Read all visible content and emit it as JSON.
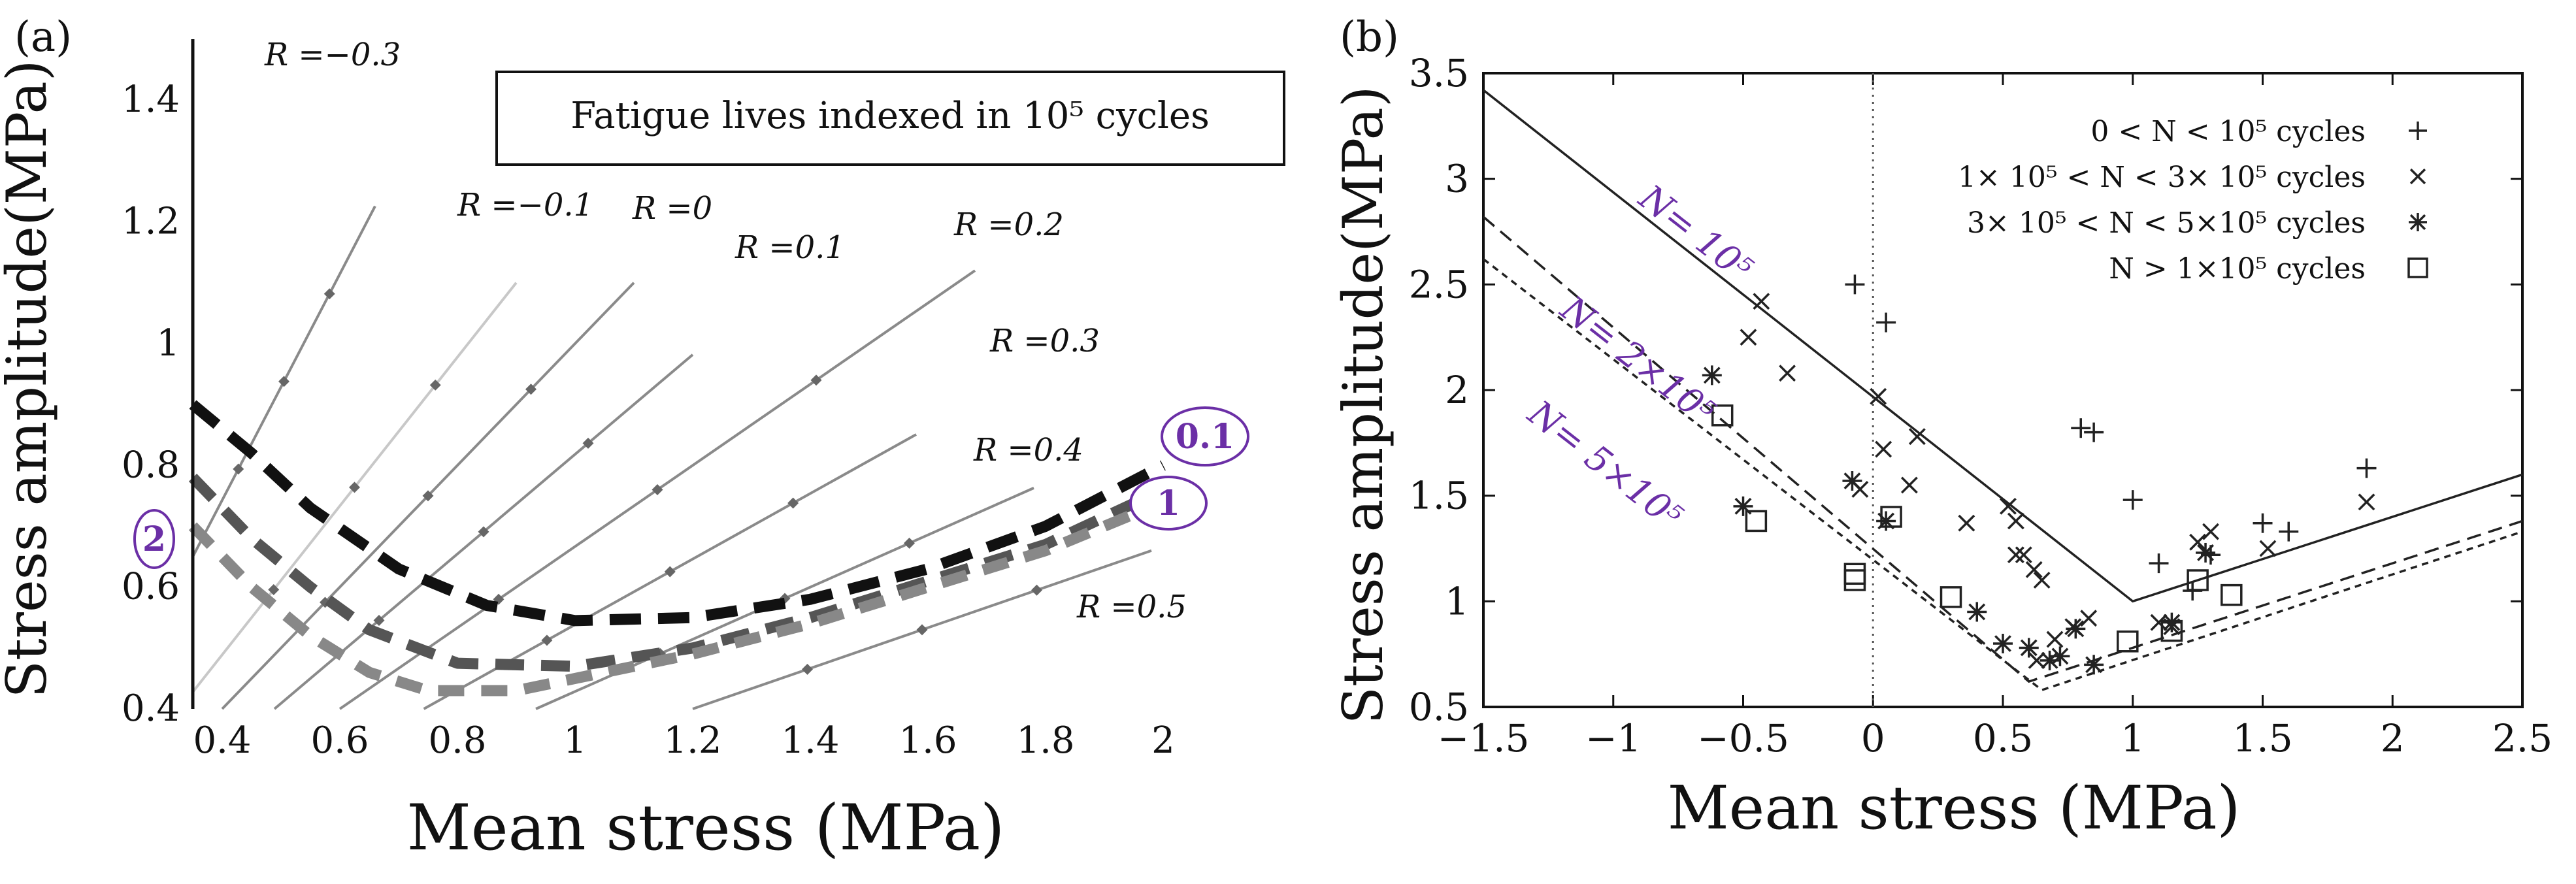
{
  "chart_data": [
    {
      "panel": "(a)",
      "type": "line",
      "xlabel": "Mean stress (MPa)",
      "ylabel": "Stress amplitude(MPa)",
      "xlim": [
        0.35,
        2.0
      ],
      "ylim": [
        0.4,
        1.5
      ],
      "xticks": [
        "0.4",
        "0.6",
        "0.8",
        "1",
        "1.2",
        "1.4",
        "1.6",
        "1.8",
        "2"
      ],
      "yticks": [
        "0.4",
        "0.6",
        "0.8",
        "1",
        "1.2",
        "1.4"
      ],
      "xtick_values": [
        0.4,
        0.6,
        0.8,
        1.0,
        1.2,
        1.4,
        1.6,
        1.8,
        2.0
      ],
      "ytick_values": [
        0.4,
        0.6,
        0.8,
        1.0,
        1.2,
        1.4
      ],
      "annotation": "Fatigue lives indexed in 10⁵ cycles",
      "r_lines": [
        {
          "label": "R =−0.3",
          "R": -0.3
        },
        {
          "label": "R =−0.1",
          "R": -0.1
        },
        {
          "label": "R =0",
          "R": 0.0
        },
        {
          "label": "R =0.1",
          "R": 0.1
        },
        {
          "label": "R =0.2",
          "R": 0.2
        },
        {
          "label": "R =0.3",
          "R": 0.3
        },
        {
          "label": "R =0.4",
          "R": 0.4
        },
        {
          "label": "R =0.5",
          "R": 0.5
        }
      ],
      "series": [
        {
          "name": "0.1",
          "color": "#111111",
          "x": [
            0.35,
            0.45,
            0.55,
            0.7,
            0.85,
            1.0,
            1.2,
            1.4,
            1.6,
            1.8,
            2.0
          ],
          "y": [
            0.9,
            0.82,
            0.73,
            0.63,
            0.57,
            0.545,
            0.55,
            0.58,
            0.63,
            0.7,
            0.8
          ]
        },
        {
          "name": "1",
          "color": "#555555",
          "x": [
            0.35,
            0.45,
            0.55,
            0.65,
            0.8,
            1.0,
            1.2,
            1.4,
            1.6,
            1.8,
            2.0
          ],
          "y": [
            0.78,
            0.68,
            0.6,
            0.53,
            0.475,
            0.47,
            0.5,
            0.55,
            0.61,
            0.67,
            0.76
          ]
        },
        {
          "name": "2",
          "color": "#888888",
          "x": [
            0.35,
            0.45,
            0.55,
            0.65,
            0.75,
            0.9,
            1.0,
            1.2,
            1.4,
            1.6,
            1.8,
            2.0
          ],
          "y": [
            0.7,
            0.6,
            0.52,
            0.46,
            0.43,
            0.43,
            0.45,
            0.49,
            0.54,
            0.6,
            0.66,
            0.74
          ]
        }
      ],
      "curve_labels": [
        "0.1",
        "1",
        "2"
      ]
    },
    {
      "panel": "(b)",
      "type": "scatter",
      "xlabel": "Mean stress (MPa)",
      "ylabel": "Stress amplitude(MPa)",
      "xlim": [
        -1.5,
        2.5
      ],
      "ylim": [
        0.5,
        3.5
      ],
      "xticks": [
        "−1.5",
        "−1",
        "−0.5",
        "0",
        "0.5",
        "1",
        "1.5",
        "2",
        "2.5"
      ],
      "yticks": [
        "0.5",
        "1",
        "1.5",
        "2",
        "2.5",
        "3",
        "3.5"
      ],
      "xtick_values": [
        -1.5,
        -1.0,
        -0.5,
        0.0,
        0.5,
        1.0,
        1.5,
        2.0,
        2.5
      ],
      "ytick_values": [
        0.5,
        1.0,
        1.5,
        2.0,
        2.5,
        3.0,
        3.5
      ],
      "lines": [
        {
          "name": "N= 10⁵",
          "style": "solid",
          "x": [
            -1.5,
            1.0,
            2.5
          ],
          "y": [
            3.42,
            1.0,
            1.6
          ]
        },
        {
          "name": "N= 2×10⁵",
          "style": "dashed",
          "x": [
            -1.5,
            0.6,
            2.5
          ],
          "y": [
            2.82,
            0.62,
            1.38
          ]
        },
        {
          "name": "N= 5×10⁵",
          "style": "dotted",
          "x": [
            -1.5,
            0.65,
            2.5
          ],
          "y": [
            2.62,
            0.58,
            1.33
          ]
        }
      ],
      "line_labels": [
        "N= 10⁵",
        "N= 2×10⁵",
        "N= 5×10⁵"
      ],
      "legend": [
        {
          "label": "0 < N < 10⁵  cycles",
          "marker": "+"
        },
        {
          "label": "1× 10⁵ < N < 3× 10⁵  cycles",
          "marker": "x"
        },
        {
          "label": "3× 10⁵ < N < 5×10⁵  cycles",
          "marker": "*"
        },
        {
          "label": "N > 1×10⁵ cycles",
          "marker": "square"
        }
      ],
      "series": [
        {
          "name": "0 < N < 10⁵",
          "marker": "+",
          "x": [
            -0.07,
            0.05,
            0.8,
            0.85,
            1.0,
            1.1,
            1.23,
            1.3,
            1.5,
            1.6,
            1.9
          ],
          "y": [
            2.5,
            2.32,
            1.82,
            1.8,
            1.48,
            1.18,
            1.05,
            1.22,
            1.37,
            1.33,
            1.63
          ]
        },
        {
          "name": "1× 10⁵ < N < 3× 10⁵",
          "marker": "x",
          "x": [
            -0.43,
            -0.48,
            -0.33,
            0.02,
            0.04,
            -0.05,
            0.17,
            0.14,
            0.36,
            0.52,
            0.55,
            0.58,
            0.62,
            0.65,
            0.55,
            0.7,
            0.77,
            0.83,
            0.63,
            1.1,
            1.15,
            1.3,
            1.25,
            1.52,
            1.9
          ],
          "y": [
            2.42,
            2.25,
            2.08,
            1.97,
            1.72,
            1.53,
            1.78,
            1.55,
            1.37,
            1.45,
            1.38,
            1.22,
            1.15,
            1.1,
            1.22,
            0.82,
            0.88,
            0.92,
            0.72,
            0.9,
            0.88,
            1.33,
            1.28,
            1.25,
            1.47
          ]
        },
        {
          "name": "3× 10⁵ < N < 5×10⁵",
          "marker": "*",
          "x": [
            -0.62,
            -0.5,
            -0.08,
            0.05,
            0.4,
            0.5,
            0.6,
            0.68,
            0.72,
            0.78,
            0.85,
            1.15,
            1.28
          ],
          "y": [
            2.07,
            1.45,
            1.57,
            1.38,
            0.95,
            0.8,
            0.78,
            0.72,
            0.74,
            0.87,
            0.7,
            0.9,
            1.23
          ]
        },
        {
          "name": "N > 1×10⁵",
          "marker": "square",
          "x": [
            -0.58,
            -0.45,
            -0.07,
            -0.07,
            0.07,
            0.3,
            0.98,
            1.15,
            1.25,
            1.38
          ],
          "y": [
            1.88,
            1.38,
            1.13,
            1.1,
            1.4,
            1.02,
            0.81,
            0.86,
            1.1,
            1.03
          ]
        }
      ]
    }
  ]
}
